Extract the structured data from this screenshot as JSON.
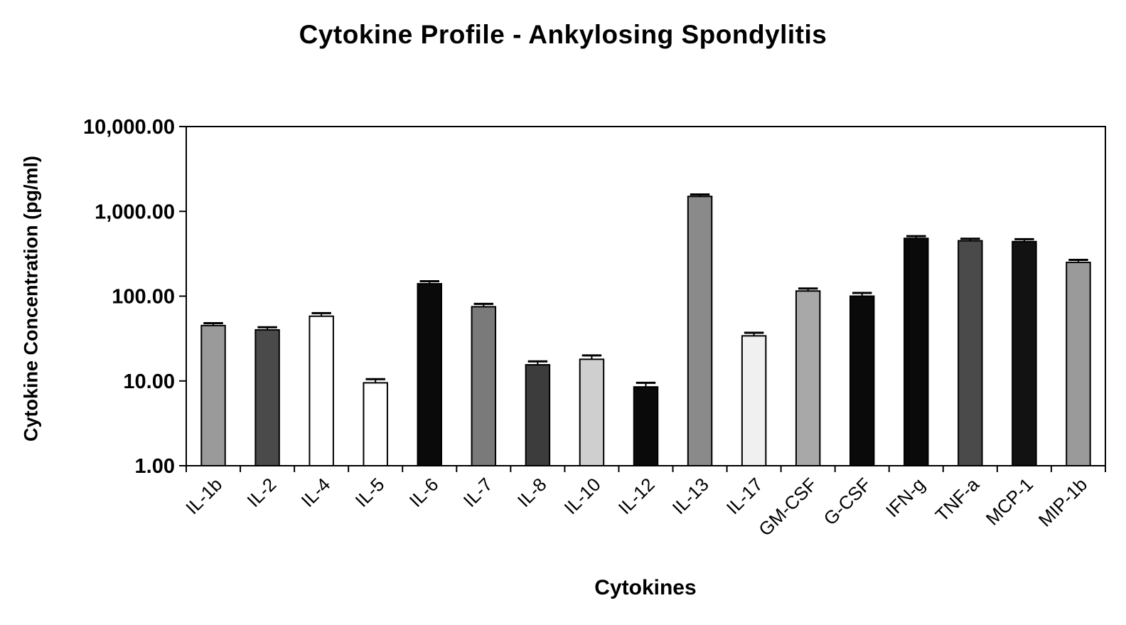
{
  "chart_data": {
    "type": "bar",
    "title": "Cytokine Profile - Ankylosing Spondylitis",
    "xlabel": "Cytokines",
    "ylabel": "Cytokine Concentration (pg/ml)",
    "yscale": "log",
    "ylim": [
      1,
      10000
    ],
    "ytick_labels": [
      "1.00",
      "10.00",
      "100.00",
      "1,000.00",
      "10,000.00"
    ],
    "grid": false,
    "legend": "none",
    "categories": [
      "IL-1b",
      "IL-2",
      "IL-4",
      "IL-5",
      "IL-6",
      "IL-7",
      "IL-8",
      "IL-10",
      "IL-12",
      "IL-13",
      "IL-17",
      "GM-CSF",
      "G-CSF",
      "IFN-g",
      "TNF-a",
      "MCP-1",
      "MIP-1b"
    ],
    "values": [
      45,
      40,
      58,
      9.5,
      140,
      75,
      15.5,
      18,
      8.5,
      1500,
      34,
      115,
      100,
      480,
      450,
      440,
      250
    ],
    "errors": [
      3,
      3,
      5,
      1,
      10,
      6,
      1.5,
      2,
      1,
      80,
      3,
      8,
      9,
      30,
      25,
      30,
      18
    ],
    "bar_fills": [
      "#9a9a9a",
      "#4a4a4a",
      "#ffffff",
      "#ffffff",
      "#0a0a0a",
      "#7a7a7a",
      "#3c3c3c",
      "#cfcfcf",
      "#0a0a0a",
      "#8a8a8a",
      "#f0f0f0",
      "#a8a8a8",
      "#0a0a0a",
      "#0a0a0a",
      "#4a4a4a",
      "#121212",
      "#9a9a9a"
    ]
  }
}
